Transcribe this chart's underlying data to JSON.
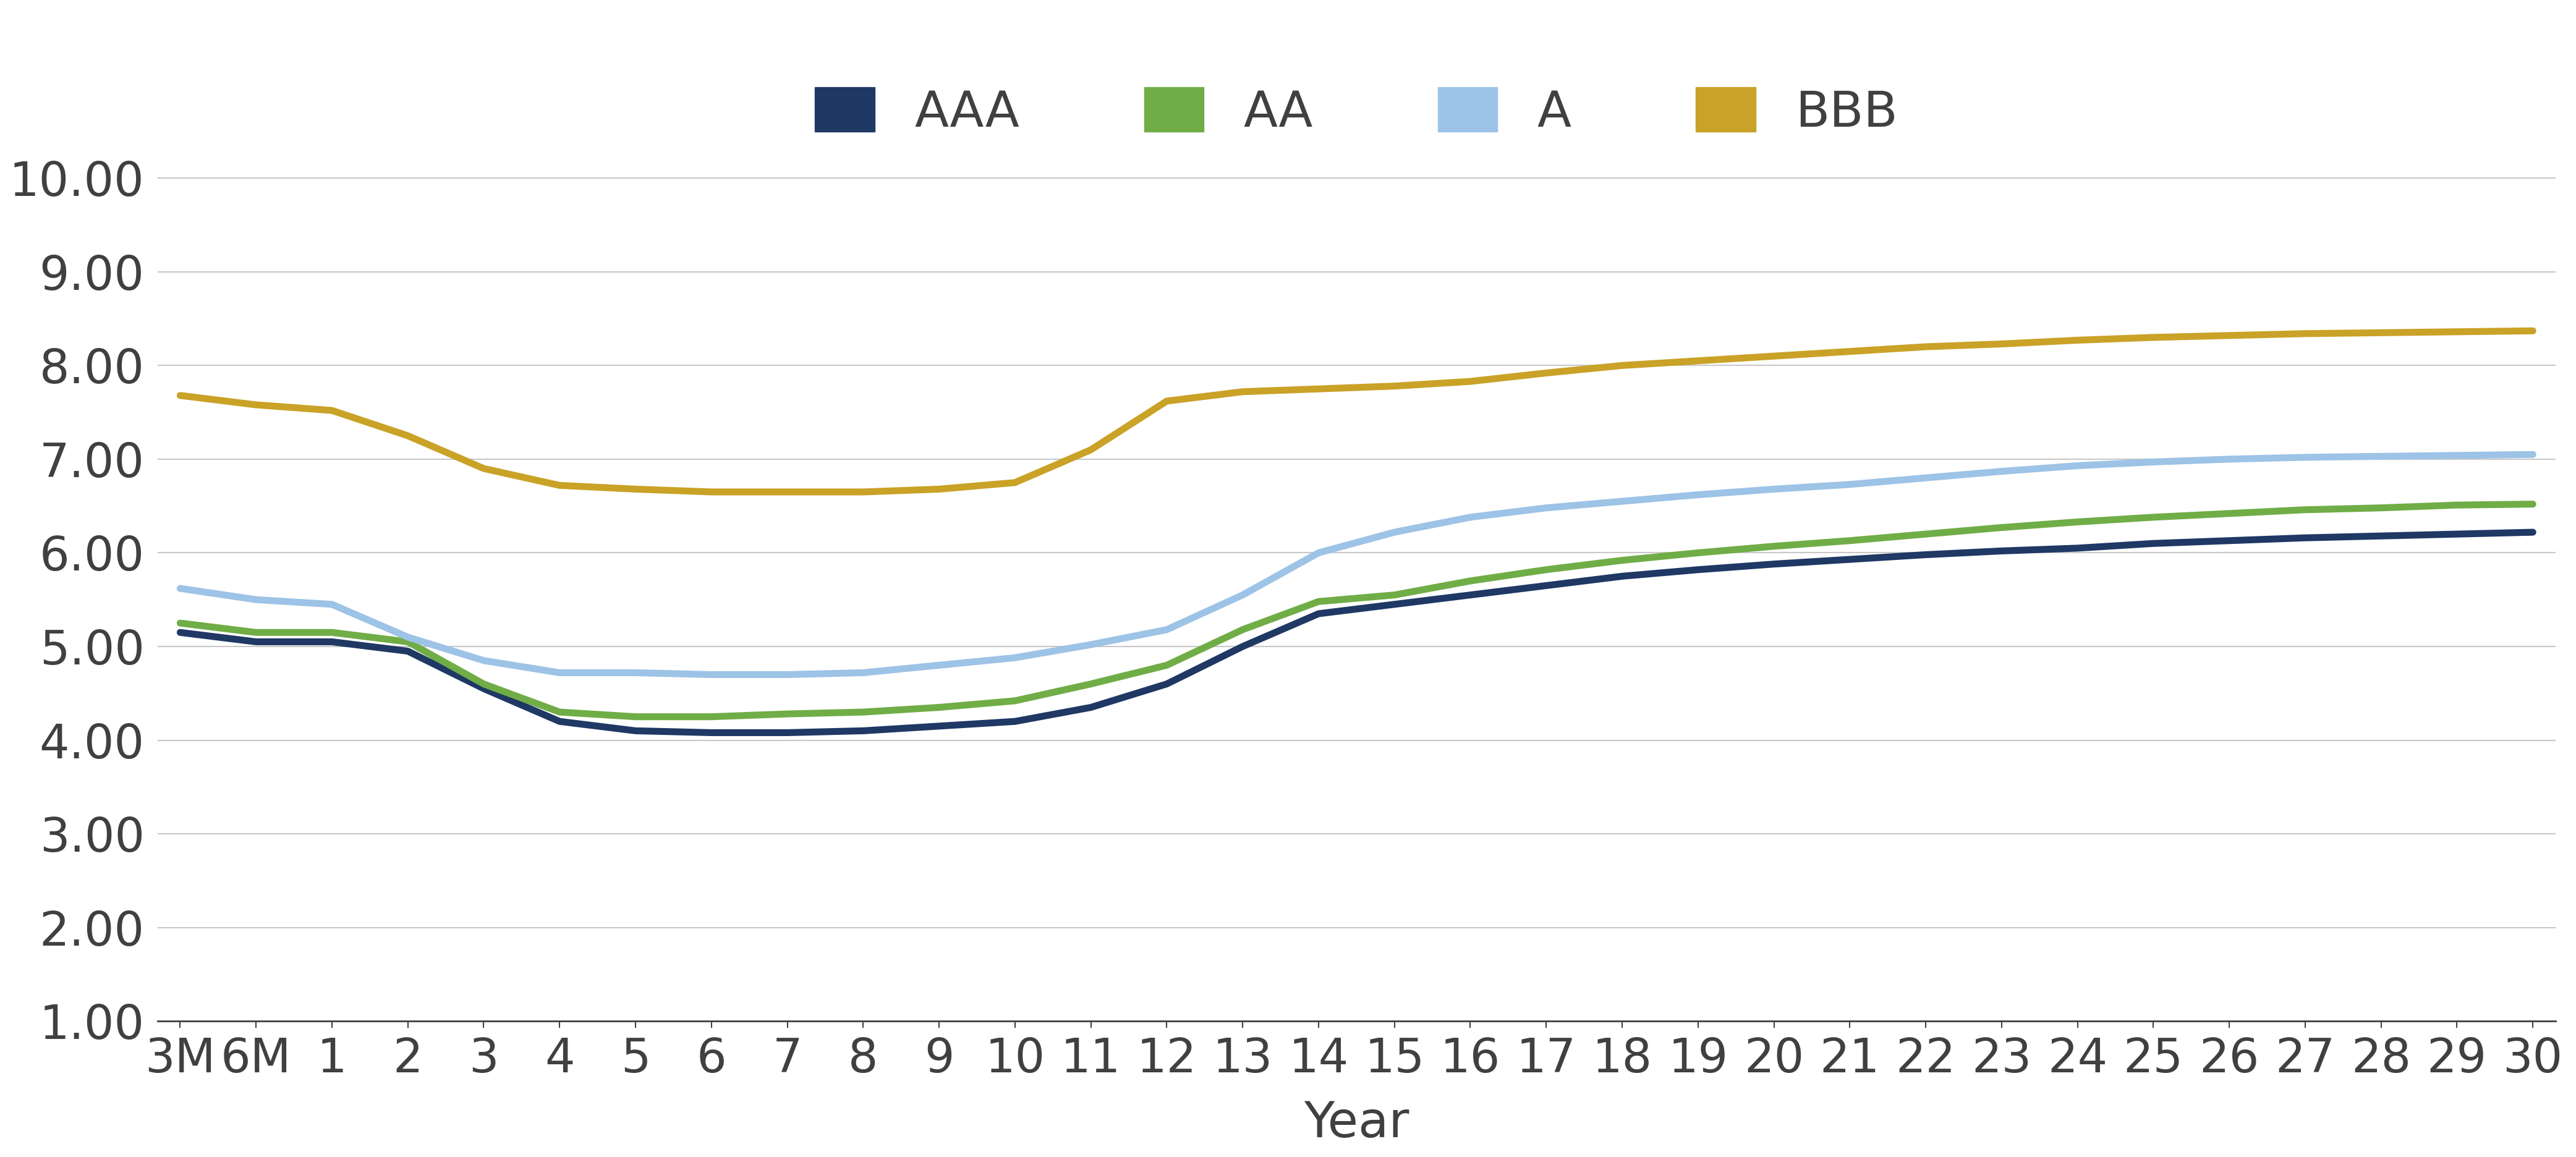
{
  "xlabel": "Year",
  "ylabel": "",
  "ylim": [
    1.0,
    10.5
  ],
  "yticks": [
    1.0,
    2.0,
    3.0,
    4.0,
    5.0,
    6.0,
    7.0,
    8.0,
    9.0,
    10.0
  ],
  "x_labels": [
    "3M",
    "6M",
    "1",
    "2",
    "3",
    "4",
    "5",
    "6",
    "7",
    "8",
    "9",
    "10",
    "11",
    "12",
    "13",
    "14",
    "15",
    "16",
    "17",
    "18",
    "19",
    "20",
    "21",
    "22",
    "23",
    "24",
    "25",
    "26",
    "27",
    "28",
    "29",
    "30"
  ],
  "series": {
    "AAA": {
      "color": "#1f3864",
      "linewidth": 8.0,
      "values": [
        5.15,
        5.05,
        5.05,
        4.95,
        4.55,
        4.2,
        4.1,
        4.08,
        4.08,
        4.1,
        4.15,
        4.2,
        4.35,
        4.6,
        5.0,
        5.35,
        5.45,
        5.55,
        5.65,
        5.75,
        5.82,
        5.88,
        5.93,
        5.98,
        6.02,
        6.05,
        6.1,
        6.13,
        6.16,
        6.18,
        6.2,
        6.22
      ]
    },
    "AA": {
      "color": "#70ad47",
      "linewidth": 8.0,
      "values": [
        5.25,
        5.15,
        5.15,
        5.05,
        4.6,
        4.3,
        4.25,
        4.25,
        4.28,
        4.3,
        4.35,
        4.42,
        4.6,
        4.8,
        5.18,
        5.48,
        5.55,
        5.7,
        5.82,
        5.92,
        6.0,
        6.07,
        6.13,
        6.2,
        6.27,
        6.33,
        6.38,
        6.42,
        6.46,
        6.48,
        6.51,
        6.52
      ]
    },
    "A": {
      "color": "#9dc3e6",
      "linewidth": 8.0,
      "values": [
        5.62,
        5.5,
        5.45,
        5.1,
        4.85,
        4.72,
        4.72,
        4.7,
        4.7,
        4.72,
        4.8,
        4.88,
        5.02,
        5.18,
        5.55,
        6.0,
        6.22,
        6.38,
        6.48,
        6.55,
        6.62,
        6.68,
        6.73,
        6.8,
        6.87,
        6.93,
        6.97,
        7.0,
        7.02,
        7.03,
        7.04,
        7.05
      ]
    },
    "BBB": {
      "color": "#c9a227",
      "linewidth": 8.0,
      "values": [
        7.68,
        7.58,
        7.52,
        7.25,
        6.9,
        6.72,
        6.68,
        6.65,
        6.65,
        6.65,
        6.68,
        6.75,
        7.1,
        7.62,
        7.72,
        7.75,
        7.78,
        7.83,
        7.92,
        8.0,
        8.05,
        8.1,
        8.15,
        8.2,
        8.23,
        8.27,
        8.3,
        8.32,
        8.34,
        8.35,
        8.36,
        8.37
      ]
    }
  },
  "legend_order": [
    "AAA",
    "AA",
    "A",
    "BBB"
  ],
  "background_color": "#ffffff",
  "grid_color": "#c8c8c8",
  "tick_color": "#404040",
  "label_fontsize": 58,
  "tick_fontsize": 55,
  "legend_fontsize": 58
}
